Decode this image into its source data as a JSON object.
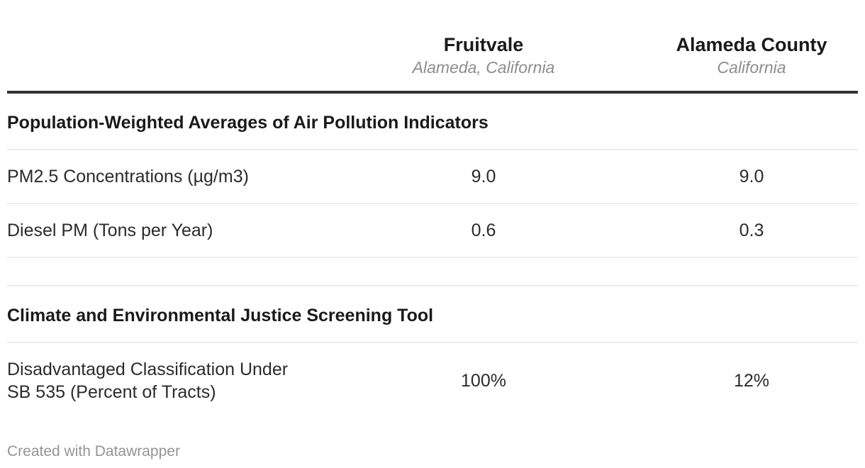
{
  "chart_data": {
    "type": "table",
    "column_headers": [
      {
        "title": "Fruitvale",
        "subtitle": "Alameda, California"
      },
      {
        "title": "Alameda County",
        "subtitle": "California"
      }
    ],
    "sections": [
      {
        "header": "Population-Weighted Averages of Air Pollution Indicators",
        "rows": [
          {
            "label": "PM2.5 Concentrations (µg/m3)",
            "values": [
              "9.0",
              "9.0"
            ]
          },
          {
            "label": "Diesel PM (Tons per Year)",
            "values": [
              "0.6",
              "0.3"
            ]
          }
        ]
      },
      {
        "header": "Climate and Environmental Justice Screening Tool",
        "rows": [
          {
            "label": "Disadvantaged Classification Under SB 535 (Percent of Tracts)",
            "values": [
              "100%",
              "12%"
            ]
          }
        ]
      }
    ],
    "layout_hints": {
      "value_alignment": "center",
      "grid": "horizontal-dividers-only",
      "header_rule": "thick-dark"
    }
  },
  "footer": {
    "credit": "Created with Datawrapper"
  },
  "colors": {
    "heading": "#1a1a1a",
    "text": "#2b2b2b",
    "subtitle": "#8c8c8c",
    "divider": "#ededed",
    "rule": "#333333",
    "credit": "#949494",
    "background": "#ffffff"
  }
}
